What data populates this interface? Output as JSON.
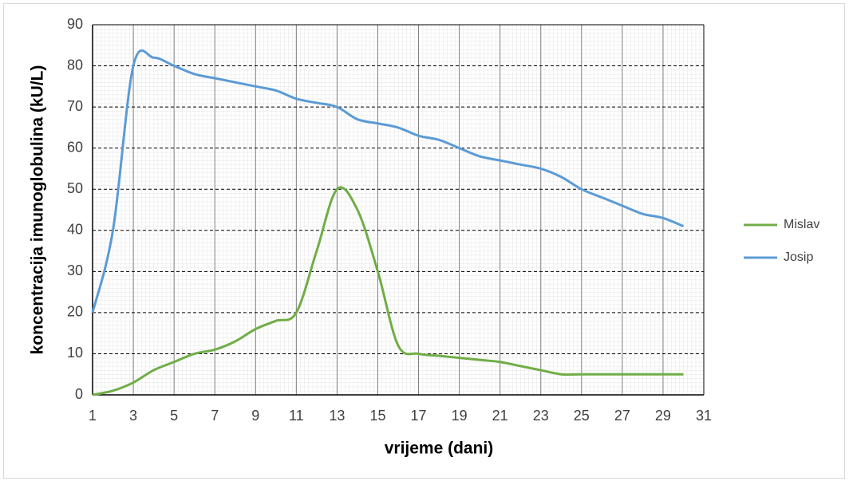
{
  "chart_data": {
    "type": "line",
    "x_label": "vrijeme (dani)",
    "y_label": "koncentracija imunoglobulina (kU/L)",
    "x": [
      1,
      2,
      3,
      4,
      5,
      6,
      7,
      8,
      9,
      10,
      11,
      12,
      13,
      14,
      15,
      16,
      17,
      18,
      19,
      20,
      21,
      22,
      23,
      24,
      25,
      26,
      27,
      28,
      29,
      30
    ],
    "series": [
      {
        "name": "Mislav",
        "color": "#70ad47",
        "values": [
          0,
          1,
          3,
          6,
          8,
          10,
          11,
          13,
          16,
          18,
          20,
          35,
          50,
          45,
          30,
          12,
          10,
          9.5,
          9,
          8.5,
          8,
          7,
          6,
          5,
          5,
          5,
          5,
          5,
          5,
          5
        ]
      },
      {
        "name": "Josip",
        "color": "#5b9bd5",
        "values": [
          20,
          40,
          80,
          82,
          80,
          78,
          77,
          76,
          75,
          74,
          72,
          71,
          70,
          67,
          66,
          65,
          63,
          62,
          60,
          58,
          57,
          56,
          55,
          53,
          50,
          48,
          46,
          44,
          43,
          41
        ]
      }
    ],
    "xlim": [
      1,
      31
    ],
    "xticks": [
      1,
      3,
      5,
      7,
      9,
      11,
      13,
      15,
      17,
      19,
      21,
      23,
      25,
      27,
      29,
      31
    ],
    "ylim": [
      0,
      90
    ],
    "yticks": [
      0,
      10,
      20,
      30,
      40,
      50,
      60,
      70,
      80,
      90
    ],
    "grid": true,
    "legend": "right"
  }
}
